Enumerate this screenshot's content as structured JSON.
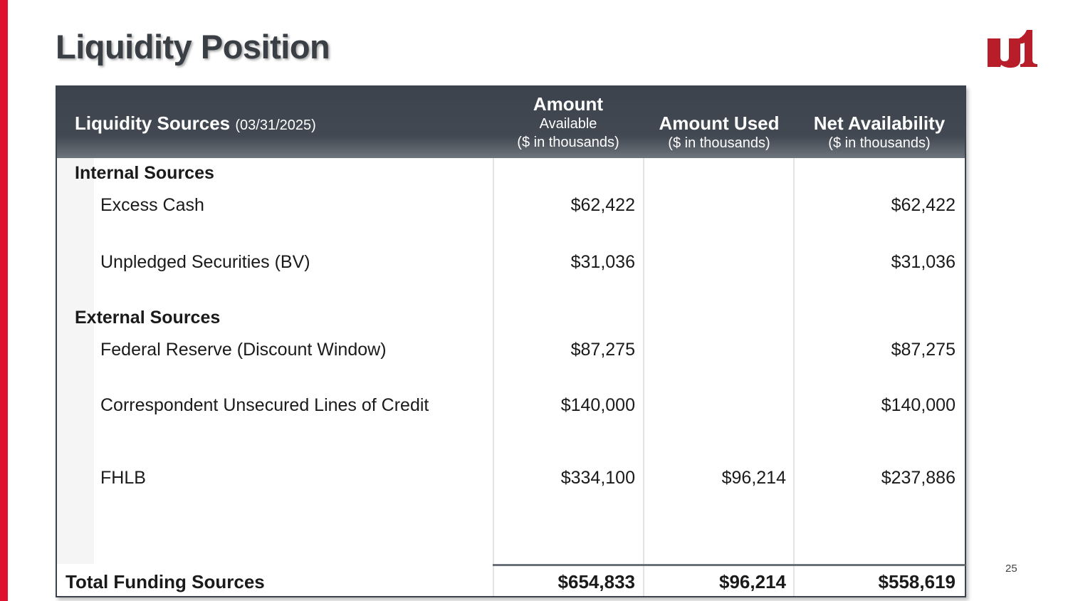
{
  "colors": {
    "accent": "#e0102f",
    "header_bg": "#424952",
    "title": "#3a3f45"
  },
  "page": {
    "title": "Liquidity Position",
    "number": "25",
    "logo_icon": "u1-logo-icon"
  },
  "table": {
    "header": {
      "sources_label": "Liquidity Sources",
      "sources_date": "(03/31/2025)",
      "col1_main": "Amount",
      "col1_sub": "Available",
      "col1_units": "($ in thousands)",
      "col2_main": "Amount Used",
      "col2_units": "($ in thousands)",
      "col3_main": "Net Availability",
      "col3_units": "($ in thousands)"
    },
    "sections": [
      {
        "title": "Internal Sources",
        "rows": [
          {
            "label": "Excess Cash",
            "available": "$62,422",
            "used": "",
            "net": "$62,422"
          },
          {
            "label": "Unpledged Securities (BV)",
            "available": "$31,036",
            "used": "",
            "net": "$31,036"
          }
        ]
      },
      {
        "title": "External Sources",
        "rows": [
          {
            "label": "Federal Reserve (Discount Window)",
            "available": "$87,275",
            "used": "",
            "net": "$87,275"
          },
          {
            "label": "Correspondent Unsecured Lines of Credit",
            "available": "$140,000",
            "used": "",
            "net": "$140,000"
          },
          {
            "label": "FHLB",
            "available": "$334,100",
            "used": "$96,214",
            "net": "$237,886"
          }
        ]
      }
    ],
    "total": {
      "label": "Total Funding Sources",
      "available": "$654,833",
      "used": "$96,214",
      "net": "$558,619"
    }
  }
}
